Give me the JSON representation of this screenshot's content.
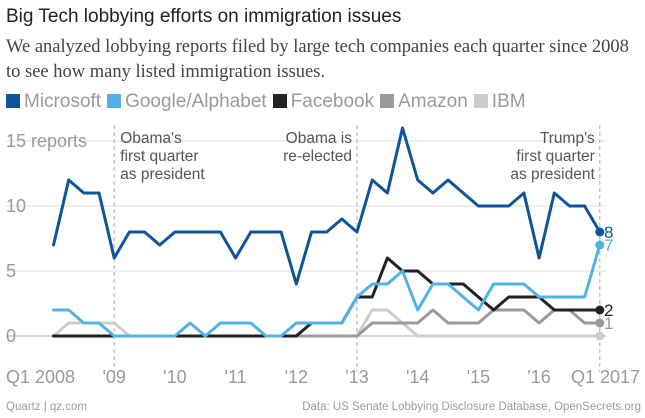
{
  "header": {
    "title": "Big Tech lobbying efforts on immigration issues",
    "subtitle": "We analyzed lobbying reports filed by large tech companies each quarter since 2008 to see how many listed immigration issues."
  },
  "footer": {
    "credit": "Quartz | qz.com",
    "source": "Data: US Senate Lobbying Disclosure Database, OpenSecrets.org"
  },
  "chart_data": {
    "type": "line",
    "title": "Big Tech lobbying efforts on immigration issues",
    "xlabel": "",
    "ylabel": "reports",
    "ylim": [
      0,
      16
    ],
    "xlim": [
      2008,
      2017
    ],
    "yticks": [
      {
        "value": 0,
        "label": "0"
      },
      {
        "value": 5,
        "label": "5"
      },
      {
        "value": 10,
        "label": "10"
      },
      {
        "value": 15,
        "label": "15 reports"
      }
    ],
    "xticks": [
      {
        "value": 2008,
        "label": "Q1 2008"
      },
      {
        "value": 2009,
        "label": "'09"
      },
      {
        "value": 2010,
        "label": "'10"
      },
      {
        "value": 2011,
        "label": "'11"
      },
      {
        "value": 2012,
        "label": "'12"
      },
      {
        "value": 2013,
        "label": "'13"
      },
      {
        "value": 2014,
        "label": "'14"
      },
      {
        "value": 2015,
        "label": "'15"
      },
      {
        "value": 2016,
        "label": "'16"
      },
      {
        "value": 2017,
        "label": "Q1 2017"
      }
    ],
    "grid": true,
    "x": [
      2008.0,
      2008.25,
      2008.5,
      2008.75,
      2009.0,
      2009.25,
      2009.5,
      2009.75,
      2010.0,
      2010.25,
      2010.5,
      2010.75,
      2011.0,
      2011.25,
      2011.5,
      2011.75,
      2012.0,
      2012.25,
      2012.5,
      2012.75,
      2013.0,
      2013.25,
      2013.5,
      2013.75,
      2014.0,
      2014.25,
      2014.5,
      2014.75,
      2015.0,
      2015.25,
      2015.5,
      2015.75,
      2016.0,
      2016.25,
      2016.5,
      2016.75,
      2017.0
    ],
    "series": [
      {
        "name": "IBM",
        "color": "#cccccc",
        "values": [
          0,
          1,
          1,
          1,
          1,
          0,
          0,
          0,
          0,
          0,
          0,
          0,
          0,
          0,
          0,
          0,
          0,
          0,
          0,
          0,
          0,
          2,
          2,
          1,
          0,
          0,
          0,
          0,
          0,
          0,
          0,
          0,
          0,
          0,
          0,
          0,
          0
        ]
      },
      {
        "name": "Amazon",
        "color": "#9a9a9a",
        "values": [
          0,
          0,
          0,
          0,
          0,
          0,
          0,
          0,
          0,
          0,
          0,
          0,
          0,
          0,
          0,
          0,
          0,
          0,
          0,
          0,
          0,
          1,
          1,
          1,
          1,
          2,
          1,
          1,
          1,
          2,
          2,
          2,
          1,
          2,
          2,
          1,
          1
        ]
      },
      {
        "name": "Facebook",
        "color": "#222222",
        "values": [
          0,
          0,
          0,
          0,
          0,
          0,
          0,
          0,
          0,
          0,
          0,
          0,
          0,
          0,
          0,
          0,
          0,
          1,
          1,
          1,
          3,
          3,
          6,
          5,
          5,
          4,
          4,
          4,
          3,
          2,
          3,
          3,
          3,
          2,
          2,
          2,
          2
        ]
      },
      {
        "name": "Google/Alphabet",
        "color": "#51b2e5",
        "values": [
          2,
          2,
          1,
          1,
          0,
          0,
          0,
          0,
          0,
          1,
          0,
          1,
          1,
          1,
          0,
          0,
          1,
          1,
          1,
          1,
          3,
          4,
          4,
          5,
          2,
          4,
          4,
          3,
          2,
          4,
          4,
          4,
          3,
          3,
          3,
          3,
          7
        ]
      },
      {
        "name": "Microsoft",
        "color": "#0f5499",
        "values": [
          7,
          12,
          11,
          11,
          6,
          8,
          8,
          7,
          8,
          8,
          8,
          8,
          6,
          8,
          8,
          8,
          4,
          8,
          8,
          9,
          8,
          12,
          11,
          16,
          12,
          11,
          12,
          11,
          10,
          10,
          10,
          11,
          6,
          11,
          10,
          10,
          8
        ]
      }
    ],
    "legend_order": [
      "Microsoft",
      "Google/Alphabet",
      "Facebook",
      "Amazon",
      "IBM"
    ],
    "end_labels": [
      {
        "series": "Microsoft",
        "label": "8"
      },
      {
        "series": "Google/Alphabet",
        "label": "7"
      },
      {
        "series": "Facebook",
        "label": "2"
      },
      {
        "series": "Amazon",
        "label": "1"
      }
    ],
    "annotations": [
      {
        "x": 2009.0,
        "lines": [
          "Obama's",
          "first quarter",
          "as president"
        ],
        "anchor": "start"
      },
      {
        "x": 2013.0,
        "lines": [
          "Obama is",
          "re-elected"
        ],
        "anchor": "end"
      },
      {
        "x": 2017.0,
        "lines": [
          "Trump's",
          "first quarter",
          "as president"
        ],
        "anchor": "end"
      }
    ]
  }
}
